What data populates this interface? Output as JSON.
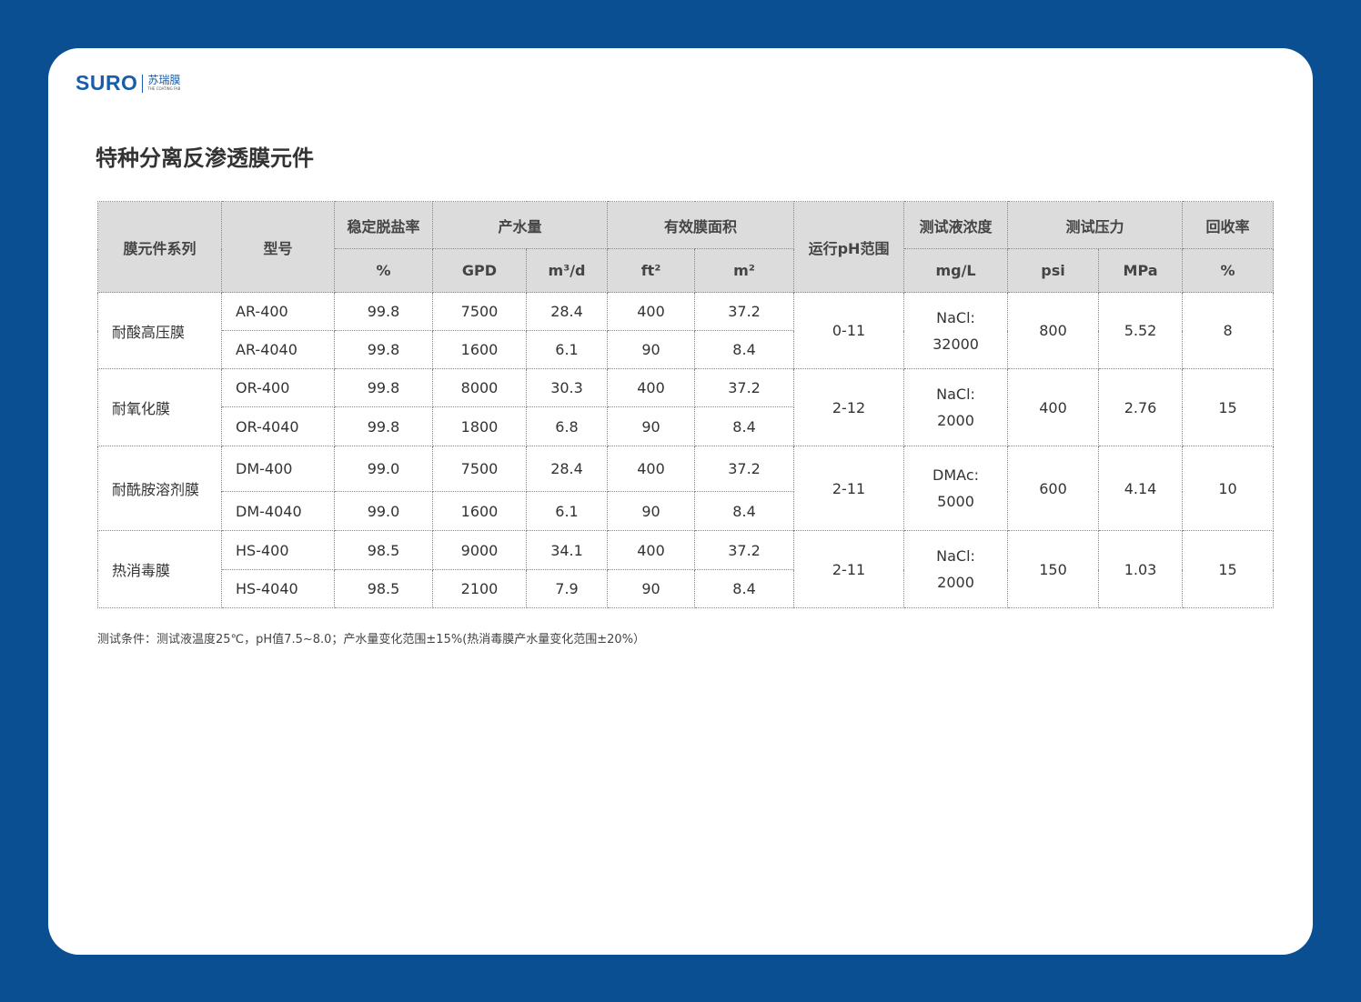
{
  "logo": {
    "brand": "SURO",
    "cn": "苏瑞膜",
    "tagline": "THE COATING FAB"
  },
  "title": "特种分离反渗透膜元件",
  "table": {
    "headers": {
      "series": "膜元件系列",
      "model": "型号",
      "rejection": "稳定脱盐率",
      "flow": "产水量",
      "area": "有效膜面积",
      "ph": "运行pH范围",
      "conc": "测试液浓度",
      "pressure": "测试压力",
      "recovery": "回收率"
    },
    "units": {
      "rejection": "%",
      "gpd": "GPD",
      "m3d": "m³/d",
      "ft2": "ft²",
      "m2": "m²",
      "conc": "mg/L",
      "psi": "psi",
      "mpa": "MPa",
      "recovery": "%"
    },
    "groups": [
      {
        "series": "耐酸高压膜",
        "ph": "0-11",
        "conc1": "NaCl:",
        "conc2": "32000",
        "psi": "800",
        "mpa": "5.52",
        "recovery": "8",
        "rows": [
          {
            "model": "AR-400",
            "rej": "99.8",
            "gpd": "7500",
            "m3d": "28.4",
            "ft2": "400",
            "m2": "37.2"
          },
          {
            "model": "AR-4040",
            "rej": "99.8",
            "gpd": "1600",
            "m3d": "6.1",
            "ft2": "90",
            "m2": "8.4"
          }
        ]
      },
      {
        "series": "耐氧化膜",
        "ph": "2-12",
        "conc1": "NaCl:",
        "conc2": "2000",
        "psi": "400",
        "mpa": "2.76",
        "recovery": "15",
        "rows": [
          {
            "model": "OR-400",
            "rej": "99.8",
            "gpd": "8000",
            "m3d": "30.3",
            "ft2": "400",
            "m2": "37.2"
          },
          {
            "model": "OR-4040",
            "rej": "99.8",
            "gpd": "1800",
            "m3d": "6.8",
            "ft2": "90",
            "m2": "8.4"
          }
        ]
      },
      {
        "series": "耐酰胺溶剂膜",
        "ph": "2-11",
        "conc1": "DMAc:",
        "conc2": "5000",
        "psi": "600",
        "mpa": "4.14",
        "recovery": "10",
        "rows": [
          {
            "model": "DM-400",
            "rej": "99.0",
            "gpd": "7500",
            "m3d": "28.4",
            "ft2": "400",
            "m2": "37.2"
          },
          {
            "model": "DM-4040",
            "rej": "99.0",
            "gpd": "1600",
            "m3d": "6.1",
            "ft2": "90",
            "m2": "8.4"
          }
        ]
      },
      {
        "series": "热消毒膜",
        "ph": "2-11",
        "conc1": "NaCl:",
        "conc2": "2000",
        "psi": "150",
        "mpa": "1.03",
        "recovery": "15",
        "rows": [
          {
            "model": "HS-400",
            "rej": "98.5",
            "gpd": "9000",
            "m3d": "34.1",
            "ft2": "400",
            "m2": "37.2"
          },
          {
            "model": "HS-4040",
            "rej": "98.5",
            "gpd": "2100",
            "m3d": "7.9",
            "ft2": "90",
            "m2": "8.4"
          }
        ]
      }
    ]
  },
  "note": "测试条件：测试液温度25℃，pH值7.5~8.0；产水量变化范围±15%(热消毒膜产水量变化范围±20%）"
}
